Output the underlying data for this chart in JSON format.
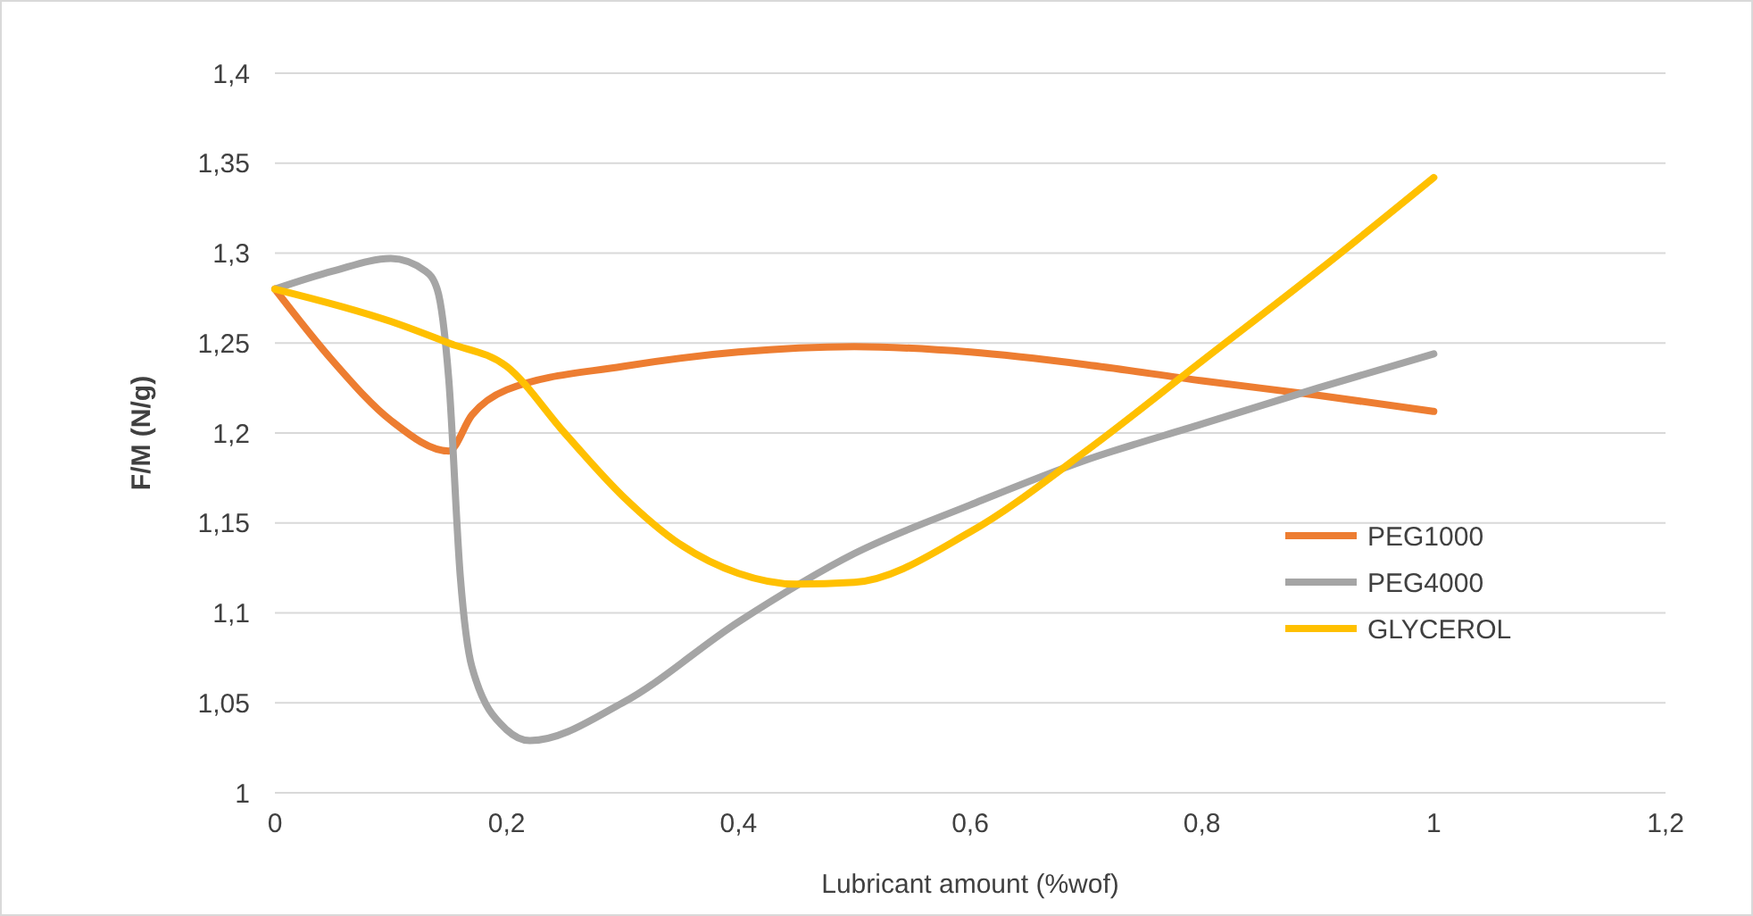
{
  "chart_data": {
    "type": "line",
    "xlabel": "Lubricant amount (%wof)",
    "ylabel": "F/M (N/g)",
    "xlim": [
      0,
      1.2
    ],
    "xticks": [
      0,
      {
        "value": 0.2,
        "label": "0,2"
      },
      {
        "value": 0.4,
        "label": "0,4"
      },
      {
        "value": 0.6,
        "label": "0,6"
      },
      {
        "value": 0.8,
        "label": "0,8"
      },
      1,
      {
        "value": 1.2,
        "label": "1,2"
      }
    ],
    "ylim": [
      1,
      1.4
    ],
    "yticks": [
      1,
      {
        "value": 1.05,
        "label": "1,05"
      },
      {
        "value": 1.1,
        "label": "1,1"
      },
      {
        "value": 1.15,
        "label": "1,15"
      },
      {
        "value": 1.2,
        "label": "1,2"
      },
      {
        "value": 1.25,
        "label": "1,25"
      },
      {
        "value": 1.3,
        "label": "1,3"
      },
      {
        "value": 1.35,
        "label": "1,35"
      },
      {
        "value": 1.4,
        "label": "1,4"
      }
    ],
    "grid": "y",
    "legend": "right",
    "marker": "none",
    "series": [
      {
        "name": "PEG1000",
        "color": "#ed7d31",
        "x": [
          0,
          0.05,
          0.1,
          0.15,
          0.17,
          0.2,
          0.3,
          0.4,
          0.5,
          0.6,
          0.7,
          0.8,
          0.9,
          1
        ],
        "values": [
          1.28,
          1.24,
          1.207,
          1.19,
          1.21,
          1.224,
          1.237,
          1.245,
          1.248,
          1.245,
          1.238,
          1.229,
          1.221,
          1.212
        ]
      },
      {
        "name": "PEG4000",
        "color": "#a5a5a5",
        "x": [
          0,
          0.05,
          0.1,
          0.13,
          0.14,
          0.15,
          0.16,
          0.17,
          0.2,
          0.22,
          0.3,
          0.4,
          0.5,
          0.6,
          0.7,
          0.8,
          0.9,
          1
        ],
        "values": [
          1.28,
          1.29,
          1.297,
          1.29,
          1.28,
          1.23,
          1.12,
          1.07,
          1.035,
          1.029,
          1.05,
          1.095,
          1.133,
          1.16,
          1.185,
          1.205,
          1.225,
          1.244
        ]
      },
      {
        "name": "GLYCEROL",
        "color": "#ffc000",
        "x": [
          0,
          0.1,
          0.15,
          0.2,
          0.25,
          0.3,
          0.35,
          0.4,
          0.45,
          0.5,
          0.6,
          0.7,
          0.8,
          0.9,
          1
        ],
        "values": [
          1.28,
          1.262,
          1.25,
          1.237,
          1.2,
          1.165,
          1.138,
          1.122,
          1.116,
          1.117,
          1.145,
          1.19,
          1.24,
          1.29,
          1.342
        ]
      }
    ]
  }
}
